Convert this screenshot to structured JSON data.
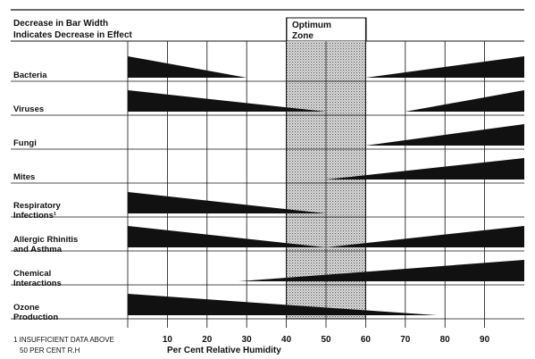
{
  "header": {
    "line1": "Decrease in Bar Width",
    "line2": "Indicates Decrease in Effect",
    "zone_line1": "Optimum",
    "zone_line2": "Zone"
  },
  "footnote": {
    "line1": "1 INSUFFICIENT DATA ABOVE",
    "line2": "50 PER CENT R.H"
  },
  "chart_data": {
    "type": "wedge",
    "xlabel": "Per Cent Relative Humidity",
    "xlim": [
      0,
      100
    ],
    "xticks": [
      10,
      20,
      30,
      40,
      50,
      60,
      70,
      80,
      90
    ],
    "optimum_zone": [
      40,
      60
    ],
    "rows": [
      {
        "label": [
          "Bacteria"
        ],
        "left": {
          "end": 30
        },
        "right": {
          "start": 60
        }
      },
      {
        "label": [
          "Viruses"
        ],
        "left": {
          "end": 50
        },
        "right": {
          "start": 70
        }
      },
      {
        "label": [
          "Fungi"
        ],
        "left": null,
        "right": {
          "start": 60
        }
      },
      {
        "label": [
          "Mites"
        ],
        "left": null,
        "right": {
          "start": 50
        }
      },
      {
        "label": [
          "Respiratory",
          "Infections¹"
        ],
        "left": {
          "end": 50
        },
        "right": null
      },
      {
        "label": [
          "Allergic Rhinitis",
          "and Asthma"
        ],
        "left": {
          "end": 50
        },
        "right": {
          "start": 50
        }
      },
      {
        "label": [
          "Chemical",
          "Interactions"
        ],
        "left": null,
        "right": {
          "start": 28
        }
      },
      {
        "label": [
          "Ozone",
          "Production"
        ],
        "left": {
          "end": 78
        },
        "right": null
      }
    ]
  }
}
